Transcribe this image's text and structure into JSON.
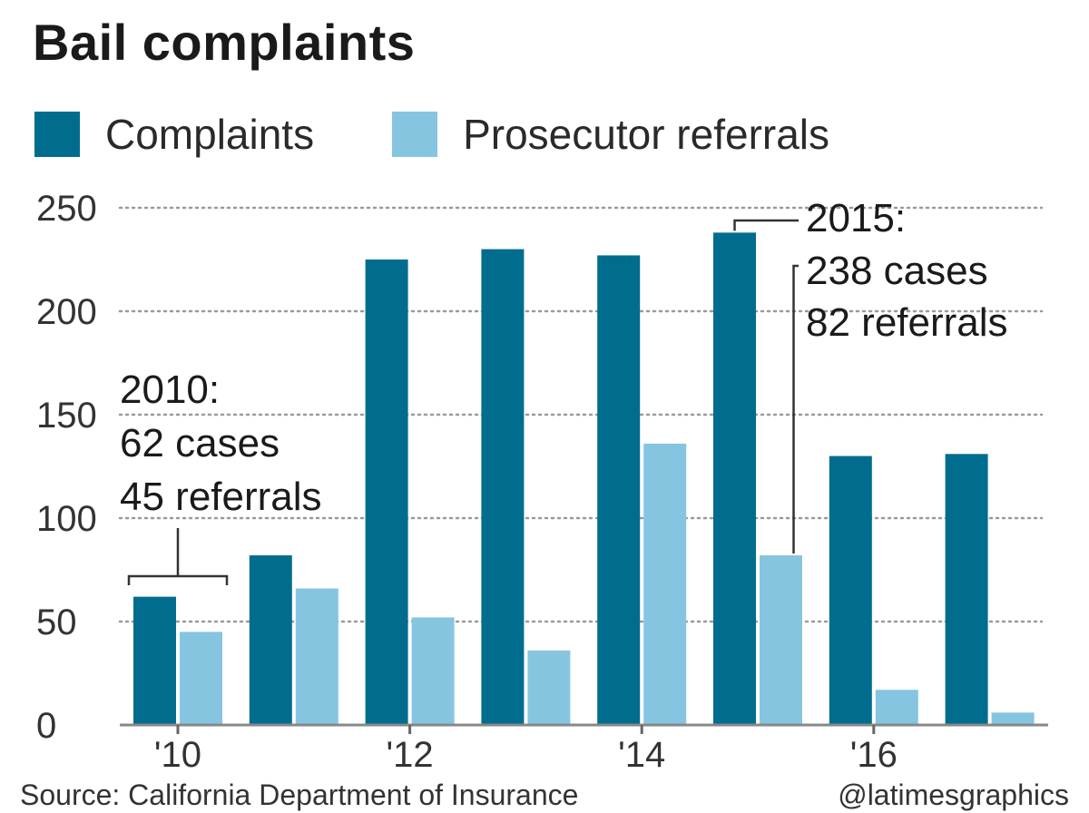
{
  "header": {
    "title": "Bail complaints"
  },
  "legend": {
    "items": [
      {
        "label": "Complaints",
        "color": "#006d8f"
      },
      {
        "label": "Prosecutor referrals",
        "color": "#86c5e0"
      }
    ]
  },
  "footer": {
    "source": "Source: California Department of Insurance",
    "credit": "@latimesgraphics"
  },
  "chart_data": {
    "type": "bar",
    "x": [
      2010,
      2011,
      2012,
      2013,
      2014,
      2015,
      2016,
      2017
    ],
    "series": [
      {
        "name": "Complaints",
        "color": "#006d8f",
        "values": [
          62,
          82,
          225,
          230,
          227,
          238,
          130,
          131
        ]
      },
      {
        "name": "Prosecutor referrals",
        "color": "#86c5e0",
        "values": [
          45,
          66,
          52,
          36,
          136,
          82,
          17,
          6
        ]
      }
    ],
    "x_tick_labels": [
      "'10",
      "'12",
      "'14",
      "'16"
    ],
    "x_tick_values": [
      2010,
      2012,
      2014,
      2016
    ],
    "y_ticks": [
      0,
      50,
      100,
      150,
      200,
      250
    ],
    "ylim": [
      0,
      250
    ],
    "grid": "dotted horizontal",
    "annotations": [
      {
        "x": 2010,
        "lines": [
          "2010:",
          "62 cases",
          "45 referrals"
        ]
      },
      {
        "x": 2015,
        "lines": [
          "2015:",
          "238 cases",
          "82 referrals"
        ]
      }
    ]
  }
}
